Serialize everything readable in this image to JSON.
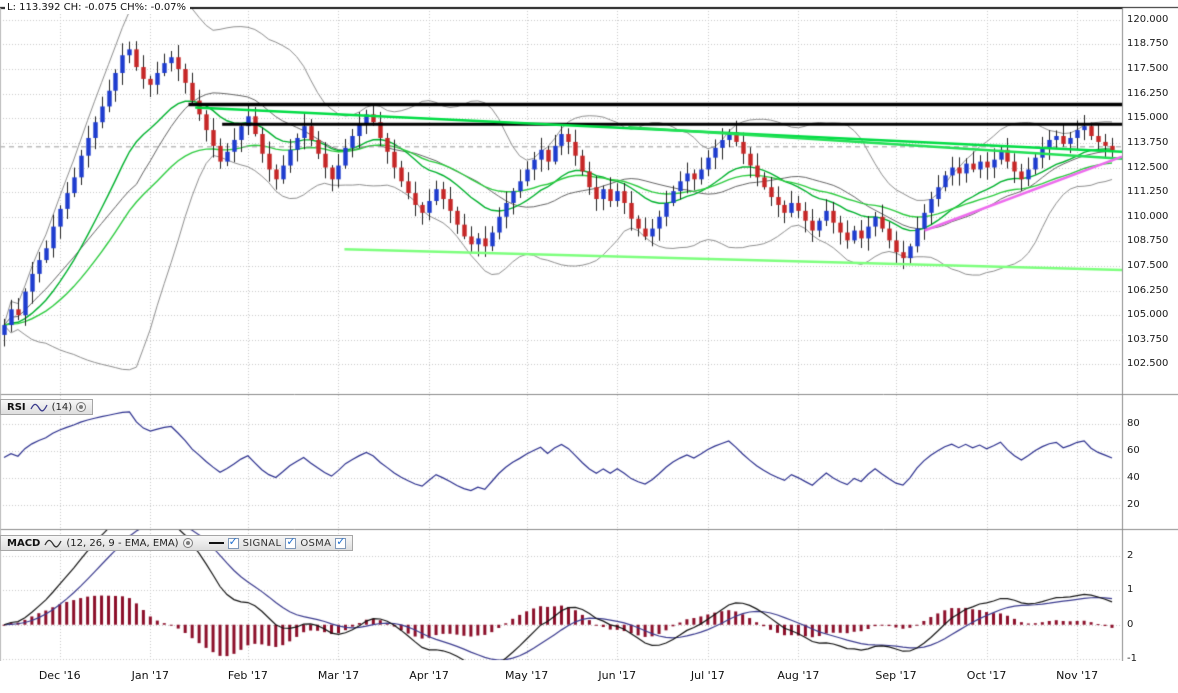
{
  "colors": {
    "background": "#ffffff",
    "grid": "#c9c9c9",
    "panel_border": "#8a8a8a",
    "frame_top": "#1a1a1a",
    "up_candle": "#1e3ccf",
    "down_candle": "#c62626",
    "wick": "#222222",
    "bollinger": "#8f8f8f",
    "bollinger_mid": "#666666",
    "ema_fast": "#00b22d",
    "ema_slow": "#2ecc40",
    "rsi_line": "#2b2f8e",
    "macd_line": "#151515",
    "signal_line": "#3b3b8f",
    "osma_bar": "#8c0f2a",
    "checkbox_check": "#1f6fd0"
  },
  "price_panel": {
    "info_label": "L: 113.392 CH: -0.075 CH%: -0.07%",
    "axis_ticks": [
      "120.000",
      "118.750",
      "117.500",
      "116.250",
      "115.000",
      "113.750",
      "112.500",
      "111.250",
      "110.000",
      "108.750",
      "107.500",
      "106.250",
      "105.000",
      "103.750",
      "102.500"
    ]
  },
  "rsi_panel": {
    "title": "RSI",
    "params": "(14)",
    "axis_ticks": [
      "80",
      "60",
      "40",
      "20"
    ]
  },
  "macd_panel": {
    "title": "MACD",
    "params": "(12, 26, 9 - EMA, EMA)",
    "signal_label": "SIGNAL",
    "osma_label": "OSMA",
    "axis_ticks": [
      "2",
      "1",
      "0",
      "-1"
    ]
  },
  "time_axis": {
    "labels": [
      "Dec '16",
      "Jan '17",
      "Feb '17",
      "Mar '17",
      "Apr '17",
      "May '17",
      "Jun '17",
      "Jul '17",
      "Aug '17",
      "Sep '17",
      "Oct '17",
      "Nov '17"
    ]
  },
  "chart_data": {
    "type": "candlestick",
    "title": "",
    "last_price": 113.392,
    "change": -0.075,
    "change_pct": -0.07,
    "x_axis": {
      "labels": [
        "Dec '16",
        "Jan '17",
        "Feb '17",
        "Mar '17",
        "Apr '17",
        "May '17",
        "Jun '17",
        "Jul '17",
        "Aug '17",
        "Sep '17",
        "Oct '17",
        "Nov '17"
      ],
      "month_start_index": [
        8,
        21,
        35,
        48,
        61,
        75,
        88,
        101,
        114,
        128,
        141,
        154
      ]
    },
    "price_axis": {
      "min": 101.0,
      "max": 120.6,
      "gridline_step": 1.25,
      "gridlines": [
        120.0,
        118.75,
        117.5,
        116.25,
        115.0,
        113.75,
        112.5,
        111.25,
        110.0,
        108.75,
        107.5,
        106.25,
        105.0,
        103.75,
        102.5
      ]
    },
    "rsi_axis": {
      "min": 2,
      "max": 102,
      "gridlines": [
        80,
        60,
        40,
        20
      ]
    },
    "macd_axis": {
      "min": -1.05,
      "max": 2.77,
      "gridlines": [
        2,
        1,
        0,
        -1
      ]
    },
    "closes": [
      104.5,
      105.3,
      105.0,
      106.2,
      107.1,
      107.8,
      108.4,
      109.5,
      110.4,
      111.2,
      112.0,
      113.1,
      114.0,
      114.8,
      115.6,
      116.4,
      117.3,
      118.2,
      118.5,
      117.6,
      117.0,
      116.7,
      117.3,
      117.8,
      118.1,
      117.5,
      116.8,
      115.9,
      115.2,
      114.4,
      113.6,
      112.8,
      113.3,
      113.9,
      114.6,
      115.1,
      114.2,
      113.2,
      112.4,
      111.9,
      112.6,
      113.4,
      114.0,
      114.6,
      113.9,
      113.2,
      112.5,
      111.9,
      112.6,
      113.5,
      114.1,
      114.7,
      115.2,
      114.8,
      114.0,
      113.3,
      112.5,
      111.8,
      111.2,
      110.6,
      110.2,
      110.8,
      111.4,
      110.9,
      110.3,
      109.6,
      109.0,
      108.6,
      108.9,
      108.5,
      109.2,
      110.0,
      110.7,
      111.3,
      111.8,
      112.4,
      112.9,
      113.4,
      112.8,
      113.6,
      114.2,
      113.8,
      113.1,
      112.3,
      111.5,
      110.9,
      111.4,
      110.8,
      111.3,
      110.7,
      109.9,
      109.4,
      109.0,
      109.4,
      110.0,
      110.7,
      111.3,
      111.8,
      112.2,
      111.9,
      112.4,
      113.0,
      113.5,
      113.9,
      114.3,
      113.8,
      113.2,
      112.6,
      112.0,
      111.5,
      111.0,
      110.6,
      110.2,
      110.7,
      110.3,
      109.8,
      109.3,
      109.8,
      110.3,
      109.7,
      109.2,
      108.8,
      109.3,
      108.9,
      109.5,
      110.0,
      109.4,
      108.8,
      108.2,
      107.9,
      108.5,
      109.4,
      110.2,
      110.9,
      111.5,
      112.1,
      112.5,
      112.2,
      112.7,
      112.4,
      112.8,
      112.5,
      112.9,
      113.4,
      112.8,
      112.3,
      111.9,
      112.4,
      113.0,
      113.5,
      113.9,
      114.1,
      113.7,
      114.0,
      114.4,
      114.6,
      114.1,
      113.8,
      113.6,
      113.39
    ],
    "indicators": {
      "rsi_period": 14,
      "macd_fast": 12,
      "macd_slow": 26,
      "macd_signal": 9,
      "bollinger_period": 20,
      "bollinger_dev": 2,
      "ema_fast": 16,
      "ema_slow": 32
    },
    "dashed_price_line": 113.55,
    "trendlines": [
      {
        "label": "horizontal-resistance-upper",
        "color": "#000000",
        "width": 3.5,
        "x1": 0.168,
        "p1": 115.7,
        "x2": 1.0,
        "p2": 115.7,
        "dash": false
      },
      {
        "label": "horizontal-resistance-lower",
        "color": "#000000",
        "width": 3,
        "x1": 0.198,
        "p1": 114.7,
        "x2": 1.0,
        "p2": 114.7,
        "dash": false
      },
      {
        "label": "descending-trendline-1",
        "color": "#00dd44",
        "width": 2.5,
        "x1": 0.174,
        "p1": 115.55,
        "x2": 1.0,
        "p2": 113.3,
        "dash": false
      },
      {
        "label": "descending-trendline-2",
        "color": "#22e055",
        "width": 2.5,
        "x1": 0.56,
        "p1": 114.55,
        "x2": 1.0,
        "p2": 112.95,
        "dash": false
      },
      {
        "label": "support-trendline",
        "color": "#7dff7d",
        "width": 2.5,
        "x1": 0.307,
        "p1": 108.35,
        "x2": 1.0,
        "p2": 107.3,
        "dash": false
      },
      {
        "label": "ascending-trendline",
        "color": "#ee6bee",
        "width": 2.5,
        "x1": 0.824,
        "p1": 109.3,
        "x2": 1.0,
        "p2": 113.05,
        "dash": false
      }
    ]
  }
}
